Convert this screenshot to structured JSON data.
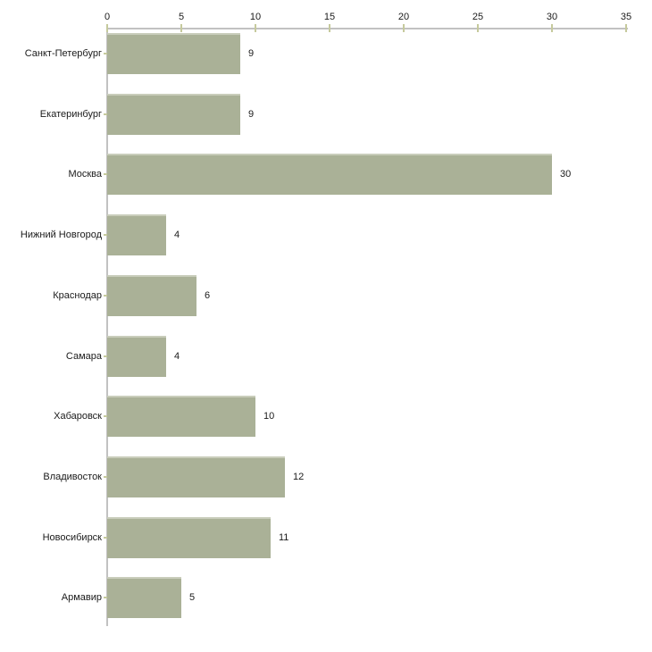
{
  "chart_data": {
    "type": "bar",
    "orientation": "horizontal",
    "title": "",
    "xlabel": "",
    "ylabel": "",
    "grid": false,
    "legend": false,
    "categories": [
      "Санкт-Петербург",
      "Екатеринбург",
      "Москва",
      "Нижний Новгород",
      "Краснодар",
      "Самара",
      "Хабаровск",
      "Владивосток",
      "Новосибирск",
      "Армавир"
    ],
    "values": [
      9,
      9,
      30,
      4,
      6,
      4,
      10,
      12,
      11,
      5
    ],
    "xticks": [
      0,
      5,
      10,
      15,
      20,
      25,
      30,
      35
    ],
    "xlim": [
      0,
      35
    ],
    "axis_position": "top",
    "colors": {
      "bar_fill": "#aab197",
      "bar_top_highlight": "#c9cdbb",
      "axis_line": "#c2c2c2",
      "tick_mark": "#c6ca9d",
      "label_text": "#1a1a1a",
      "background": "#ffffff"
    }
  }
}
